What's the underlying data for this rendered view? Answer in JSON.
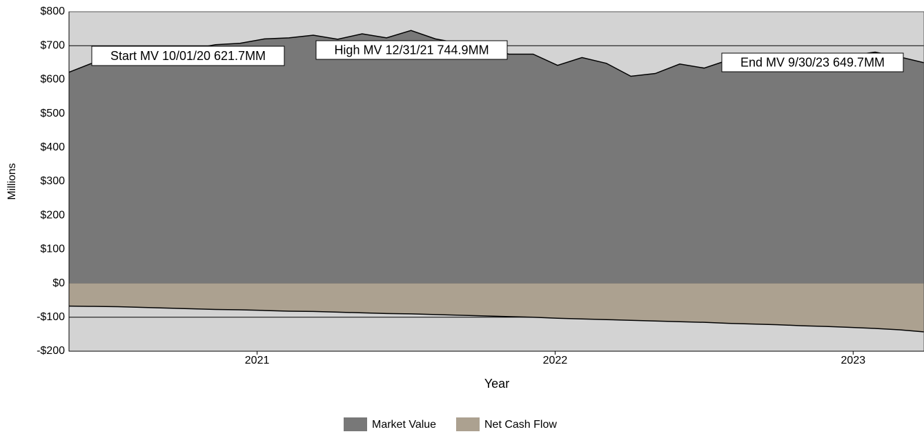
{
  "chart_data": {
    "type": "area",
    "xlabel": "Year",
    "ylabel": "Millions",
    "xlim": [
      0,
      35
    ],
    "xticks": [
      {
        "value": 7.7,
        "label": "2021"
      },
      {
        "value": 19.9,
        "label": "2022"
      },
      {
        "value": 32.1,
        "label": "2023"
      }
    ],
    "ylim": [
      -200,
      800
    ],
    "yticks": [
      {
        "value": -200,
        "label": "-$200"
      },
      {
        "value": -100,
        "label": "-$100"
      },
      {
        "value": 0,
        "label": "$0"
      },
      {
        "value": 100,
        "label": "$100"
      },
      {
        "value": 200,
        "label": "$200"
      },
      {
        "value": 300,
        "label": "$300"
      },
      {
        "value": 400,
        "label": "$400"
      },
      {
        "value": 500,
        "label": "$500"
      },
      {
        "value": 600,
        "label": "$600"
      },
      {
        "value": 700,
        "label": "$700"
      },
      {
        "value": 800,
        "label": "$800"
      }
    ],
    "grid": true,
    "x": [
      0,
      1,
      2,
      3,
      4,
      5,
      6,
      7,
      8,
      9,
      10,
      11,
      12,
      13,
      14,
      15,
      16,
      17,
      18,
      19,
      20,
      21,
      22,
      23,
      24,
      25,
      26,
      27,
      28,
      29,
      30,
      31,
      32,
      33,
      34,
      35
    ],
    "series": [
      {
        "name": "Market Value",
        "color": "#787878",
        "values": [
          621.7,
          650,
          660,
          670,
          680,
          690,
          703,
          707,
          720,
          723,
          731,
          719,
          735,
          723,
          744.9,
          720,
          707,
          700,
          675,
          675,
          642,
          665,
          648,
          610,
          618,
          646,
          634,
          658,
          670,
          665,
          660,
          665,
          671,
          681,
          667,
          649.7
        ]
      },
      {
        "name": "Net Cash Flow",
        "color": "#aca190",
        "values": [
          -67,
          -68,
          -69,
          -71,
          -73,
          -75,
          -77,
          -78,
          -80,
          -82,
          -83,
          -85,
          -87,
          -89,
          -90,
          -92,
          -94,
          -96,
          -98,
          -100,
          -103,
          -105,
          -107,
          -109,
          -111,
          -113,
          -115,
          -118,
          -120,
          -122,
          -125,
          -127,
          -130,
          -133,
          -137,
          -143
        ]
      }
    ],
    "annotations": [
      "Start MV 10/01/20 621.7MM",
      "High MV 12/31/21 744.9MM",
      "End MV 9/30/23 649.7MM"
    ]
  }
}
